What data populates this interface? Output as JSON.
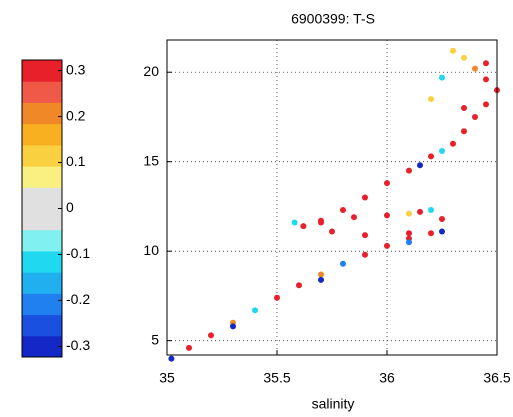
{
  "chart_data": {
    "type": "scatter",
    "title": "6900399: T-S",
    "x_label": "salinity",
    "x": [
      35.02,
      35.1,
      35.2,
      35.3,
      35.4,
      35.5,
      35.6,
      35.7,
      35.8,
      35.9,
      36.0,
      36.1,
      36.2,
      36.25,
      35.3,
      35.7,
      36.1,
      36.1,
      35.9,
      35.75,
      35.62,
      35.58,
      35.7,
      35.85,
      36.0,
      36.15,
      36.25,
      36.2,
      36.1,
      35.7,
      35.8,
      35.9,
      36.0,
      36.1,
      36.15,
      36.2,
      36.25,
      36.3,
      36.35,
      36.4,
      36.45,
      36.5,
      36.45,
      36.4,
      36.35,
      36.3,
      36.25,
      36.2,
      36.35,
      36.45
    ],
    "y": [
      4.0,
      4.6,
      5.3,
      6.0,
      6.7,
      7.4,
      8.1,
      8.7,
      9.3,
      9.8,
      10.3,
      10.7,
      11.0,
      11.1,
      5.8,
      8.4,
      10.5,
      11.0,
      10.9,
      11.1,
      11.4,
      11.6,
      11.7,
      11.9,
      12.0,
      12.2,
      11.8,
      12.3,
      12.1,
      11.6,
      12.3,
      13.0,
      13.8,
      14.5,
      14.8,
      15.3,
      15.6,
      16.0,
      16.7,
      17.5,
      18.2,
      19.0,
      19.6,
      20.2,
      20.8,
      21.2,
      19.7,
      18.5,
      18.0,
      20.5
    ],
    "c": [
      -0.3,
      0.3,
      0.3,
      0.2,
      -0.1,
      0.3,
      0.3,
      0.2,
      -0.2,
      0.3,
      0.3,
      0.3,
      0.3,
      -0.3,
      -0.3,
      -0.3,
      -0.2,
      0.3,
      0.3,
      0.3,
      0.3,
      -0.1,
      0.3,
      0.3,
      0.3,
      0.3,
      0.3,
      -0.1,
      0.1,
      0.3,
      0.3,
      0.3,
      0.3,
      0.3,
      -0.3,
      0.3,
      -0.1,
      0.3,
      0.3,
      0.3,
      0.3,
      0.3,
      0.3,
      0.2,
      0.1,
      0.1,
      -0.1,
      0.1,
      0.3,
      0.3
    ],
    "xlim": [
      35,
      36.5
    ],
    "xticks": [
      35,
      35.5,
      36,
      36.5
    ],
    "ylim": [
      4.2,
      21.8
    ],
    "yticks": [
      5,
      10,
      15,
      20
    ],
    "grid": true,
    "colorbar": {
      "lim": [
        -0.3,
        0.3
      ],
      "ticks": [
        -0.3,
        -0.2,
        -0.1,
        0,
        0.1,
        0.2,
        0.3
      ],
      "colors": [
        "#1428c8",
        "#1a50e0",
        "#2080f0",
        "#20b0f0",
        "#20d8f0",
        "#80f0f0",
        "#e0e0e0",
        "#e0e0e0",
        "#f8f080",
        "#f8d040",
        "#f8b020",
        "#f08828",
        "#f05848",
        "#e8202a"
      ]
    }
  }
}
